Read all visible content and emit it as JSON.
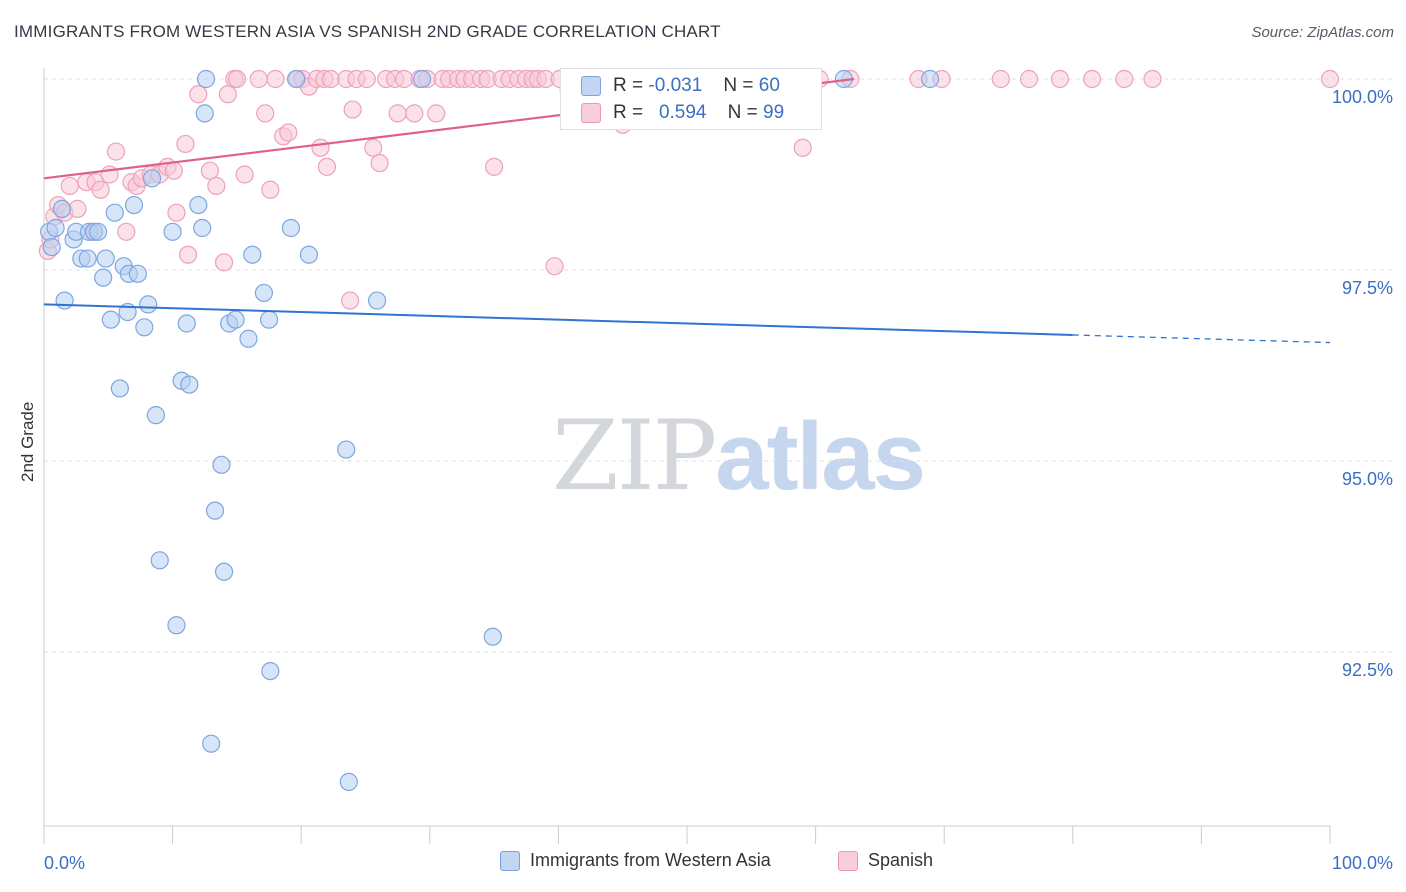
{
  "title": "IMMIGRANTS FROM WESTERN ASIA VS SPANISH 2ND GRADE CORRELATION CHART",
  "source": "Source: ZipAtlas.com",
  "colors": {
    "blue": "#6f9de0",
    "blue_fill": "#a9c6f0",
    "blue_line": "#2f74d0",
    "pink": "#e88aa8",
    "pink_fill": "#f6bfd0",
    "pink_line": "#e0608a",
    "axis_label": "#3a6fc4",
    "grid": "#dcdfe4"
  },
  "watermark": {
    "zip": "ZIP",
    "atlas": "atlas"
  },
  "stats": [
    {
      "r_label": "R =",
      "r_value": "-0.031",
      "n_label": "N =",
      "n_value": "60"
    },
    {
      "r_label": "R =",
      "r_value": "0.594",
      "n_label": "N =",
      "n_value": "99"
    }
  ],
  "legend": [
    {
      "label": "Immigrants from Western Asia"
    },
    {
      "label": "Spanish"
    }
  ],
  "chart_data": {
    "type": "scatter",
    "title": "IMMIGRANTS FROM WESTERN ASIA VS SPANISH 2ND GRADE CORRELATION CHART",
    "xlabel": "",
    "ylabel": "2nd Grade",
    "xlim": [
      0,
      100
    ],
    "ylim": [
      90.2,
      100.25
    ],
    "x_tick_labels": [
      "0.0%",
      "100.0%"
    ],
    "y_ticks": [
      92.5,
      95.0,
      97.5,
      100.0
    ],
    "y_tick_labels": [
      "92.5%",
      "95.0%",
      "97.5%",
      "100.0%"
    ],
    "series": [
      {
        "name": "Immigrants from Western Asia",
        "r": -0.031,
        "n": 60,
        "trend": {
          "x0": 0,
          "y0": 97.05,
          "x1": 80,
          "y1": 96.65,
          "dash_to_x": 100,
          "dash_to_y": 96.55
        },
        "points": [
          [
            0.4,
            98.0
          ],
          [
            0.6,
            97.8
          ],
          [
            0.9,
            98.05
          ],
          [
            1.4,
            98.3
          ],
          [
            1.6,
            97.1
          ],
          [
            2.3,
            97.9
          ],
          [
            2.5,
            98.0
          ],
          [
            2.9,
            97.65
          ],
          [
            3.4,
            97.65
          ],
          [
            3.5,
            98.0
          ],
          [
            3.9,
            98.0
          ],
          [
            4.2,
            98.0
          ],
          [
            4.6,
            97.4
          ],
          [
            4.8,
            97.65
          ],
          [
            5.2,
            96.85
          ],
          [
            5.5,
            98.25
          ],
          [
            5.9,
            95.95
          ],
          [
            6.2,
            97.55
          ],
          [
            6.5,
            96.95
          ],
          [
            6.6,
            97.45
          ],
          [
            7.0,
            98.35
          ],
          [
            7.3,
            97.45
          ],
          [
            7.8,
            96.75
          ],
          [
            8.1,
            97.05
          ],
          [
            8.4,
            98.7
          ],
          [
            8.7,
            95.6
          ],
          [
            9.0,
            93.7
          ],
          [
            10.0,
            98.0
          ],
          [
            10.3,
            92.85
          ],
          [
            10.7,
            96.05
          ],
          [
            11.1,
            96.8
          ],
          [
            11.3,
            96.0
          ],
          [
            12.0,
            98.35
          ],
          [
            12.3,
            98.05
          ],
          [
            12.5,
            99.55
          ],
          [
            12.6,
            100.0
          ],
          [
            13.0,
            91.3
          ],
          [
            13.3,
            94.35
          ],
          [
            13.8,
            94.95
          ],
          [
            14.0,
            93.55
          ],
          [
            14.4,
            96.8
          ],
          [
            14.9,
            96.85
          ],
          [
            15.9,
            96.6
          ],
          [
            16.2,
            97.7
          ],
          [
            17.1,
            97.2
          ],
          [
            17.5,
            96.85
          ],
          [
            17.6,
            92.25
          ],
          [
            19.2,
            98.05
          ],
          [
            19.6,
            100.0
          ],
          [
            20.6,
            97.7
          ],
          [
            23.5,
            95.15
          ],
          [
            23.7,
            90.8
          ],
          [
            25.9,
            97.1
          ],
          [
            29.4,
            100.0
          ],
          [
            34.9,
            92.7
          ],
          [
            42.0,
            100.0
          ],
          [
            46.3,
            100.0
          ],
          [
            52.0,
            100.0
          ],
          [
            62.2,
            100.0
          ],
          [
            68.9,
            100.0
          ]
        ]
      },
      {
        "name": "Spanish",
        "r": 0.594,
        "n": 99,
        "trend": {
          "x0": 0,
          "y0": 98.7,
          "x1": 63,
          "y1": 100.0
        },
        "points": [
          [
            0.3,
            97.75
          ],
          [
            0.5,
            97.9
          ],
          [
            0.8,
            98.2
          ],
          [
            1.1,
            98.35
          ],
          [
            1.6,
            98.25
          ],
          [
            2.0,
            98.6
          ],
          [
            2.6,
            98.3
          ],
          [
            3.3,
            98.65
          ],
          [
            3.8,
            98.0
          ],
          [
            4.0,
            98.65
          ],
          [
            4.4,
            98.55
          ],
          [
            5.1,
            98.75
          ],
          [
            5.6,
            99.05
          ],
          [
            6.4,
            98.0
          ],
          [
            6.8,
            98.65
          ],
          [
            7.2,
            98.6
          ],
          [
            7.6,
            98.7
          ],
          [
            8.3,
            98.75
          ],
          [
            9.0,
            98.75
          ],
          [
            9.6,
            98.85
          ],
          [
            10.1,
            98.8
          ],
          [
            10.3,
            98.25
          ],
          [
            11.0,
            99.15
          ],
          [
            11.2,
            97.7
          ],
          [
            12.0,
            99.8
          ],
          [
            12.9,
            98.8
          ],
          [
            13.4,
            98.6
          ],
          [
            14.0,
            97.6
          ],
          [
            14.3,
            99.8
          ],
          [
            14.8,
            100.0
          ],
          [
            15.0,
            100.0
          ],
          [
            15.6,
            98.75
          ],
          [
            16.7,
            100.0
          ],
          [
            17.2,
            99.55
          ],
          [
            17.6,
            98.55
          ],
          [
            18.0,
            100.0
          ],
          [
            18.6,
            99.25
          ],
          [
            19.0,
            99.3
          ],
          [
            19.7,
            100.0
          ],
          [
            20.1,
            100.0
          ],
          [
            20.6,
            99.9
          ],
          [
            21.2,
            100.0
          ],
          [
            21.5,
            99.1
          ],
          [
            21.8,
            100.0
          ],
          [
            22.0,
            98.85
          ],
          [
            22.3,
            100.0
          ],
          [
            23.5,
            100.0
          ],
          [
            23.8,
            97.1
          ],
          [
            24.0,
            99.6
          ],
          [
            24.3,
            100.0
          ],
          [
            25.1,
            100.0
          ],
          [
            25.6,
            99.1
          ],
          [
            26.1,
            98.9
          ],
          [
            26.6,
            100.0
          ],
          [
            27.3,
            100.0
          ],
          [
            27.5,
            99.55
          ],
          [
            28.0,
            100.0
          ],
          [
            28.8,
            99.55
          ],
          [
            29.2,
            100.0
          ],
          [
            29.8,
            100.0
          ],
          [
            30.5,
            99.55
          ],
          [
            31.0,
            100.0
          ],
          [
            31.5,
            100.0
          ],
          [
            32.2,
            100.0
          ],
          [
            32.7,
            100.0
          ],
          [
            33.3,
            100.0
          ],
          [
            34.0,
            100.0
          ],
          [
            34.5,
            100.0
          ],
          [
            35.0,
            98.85
          ],
          [
            35.6,
            100.0
          ],
          [
            36.2,
            100.0
          ],
          [
            36.9,
            100.0
          ],
          [
            37.5,
            100.0
          ],
          [
            38.0,
            100.0
          ],
          [
            38.4,
            100.0
          ],
          [
            39.0,
            100.0
          ],
          [
            39.7,
            97.55
          ],
          [
            40.1,
            100.0
          ],
          [
            40.8,
            99.85
          ],
          [
            41.4,
            100.0
          ],
          [
            42.7,
            99.9
          ],
          [
            44.6,
            100.0
          ],
          [
            45.0,
            99.4
          ],
          [
            48.0,
            100.0
          ],
          [
            51.1,
            100.0
          ],
          [
            55.0,
            100.0
          ],
          [
            56.2,
            100.0
          ],
          [
            59.0,
            99.1
          ],
          [
            60.3,
            100.0
          ],
          [
            62.7,
            100.0
          ],
          [
            68.0,
            100.0
          ],
          [
            69.8,
            100.0
          ],
          [
            74.4,
            100.0
          ],
          [
            76.6,
            100.0
          ],
          [
            79.0,
            100.0
          ],
          [
            81.5,
            100.0
          ],
          [
            84.0,
            100.0
          ],
          [
            86.2,
            100.0
          ],
          [
            100.0,
            100.0
          ]
        ]
      }
    ]
  }
}
